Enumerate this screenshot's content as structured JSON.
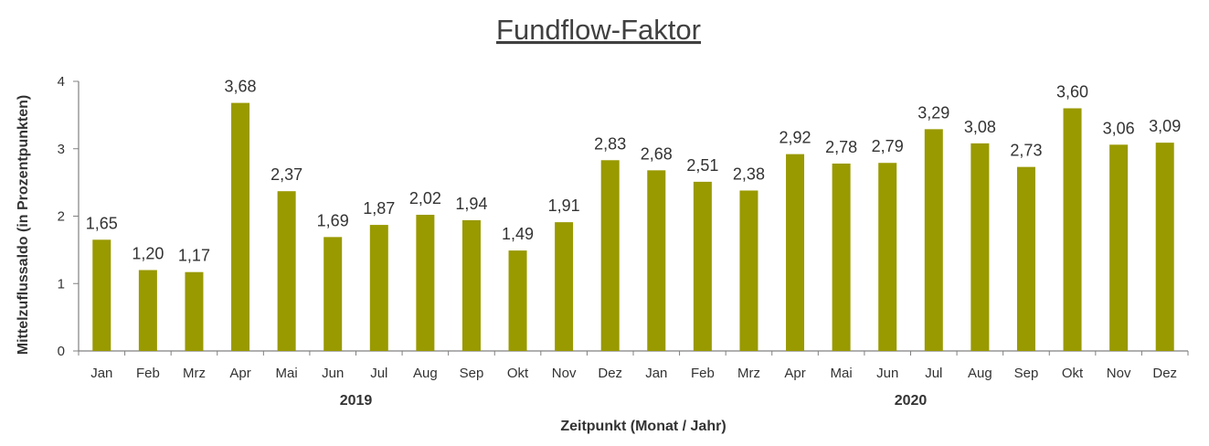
{
  "chart_data": {
    "type": "bar",
    "title": "Fundflow-Faktor",
    "xlabel": "Zeitpunkt (Monat / Jahr)",
    "ylabel": "Mittelzuflussaldo (in Prozentpunkten)",
    "ylim": [
      0,
      4
    ],
    "yticks": [
      "0",
      "1",
      "2",
      "3",
      "4"
    ],
    "grid": false,
    "bar_color": "#999900",
    "groups": [
      {
        "label": "2019",
        "start": 0,
        "end": 11
      },
      {
        "label": "2020",
        "start": 12,
        "end": 23
      }
    ],
    "categories": [
      "Jan",
      "Feb",
      "Mrz",
      "Apr",
      "Mai",
      "Jun",
      "Jul",
      "Aug",
      "Sep",
      "Okt",
      "Nov",
      "Dez",
      "Jan",
      "Feb",
      "Mrz",
      "Apr",
      "Mai",
      "Jun",
      "Jul",
      "Aug",
      "Sep",
      "Okt",
      "Nov",
      "Dez"
    ],
    "values": [
      1.65,
      1.2,
      1.17,
      3.68,
      2.37,
      1.69,
      1.87,
      2.02,
      1.94,
      1.49,
      1.91,
      2.83,
      2.68,
      2.51,
      2.38,
      2.92,
      2.78,
      2.79,
      3.29,
      3.08,
      2.73,
      3.6,
      3.06,
      3.09
    ],
    "value_labels": [
      "1,65",
      "1,20",
      "1,17",
      "3,68",
      "2,37",
      "1,69",
      "1,87",
      "2,02",
      "1,94",
      "1,49",
      "1,91",
      "2,83",
      "2,68",
      "2,51",
      "2,38",
      "2,92",
      "2,78",
      "2,79",
      "3,29",
      "3,08",
      "2,73",
      "3,60",
      "3,06",
      "3,09"
    ]
  }
}
